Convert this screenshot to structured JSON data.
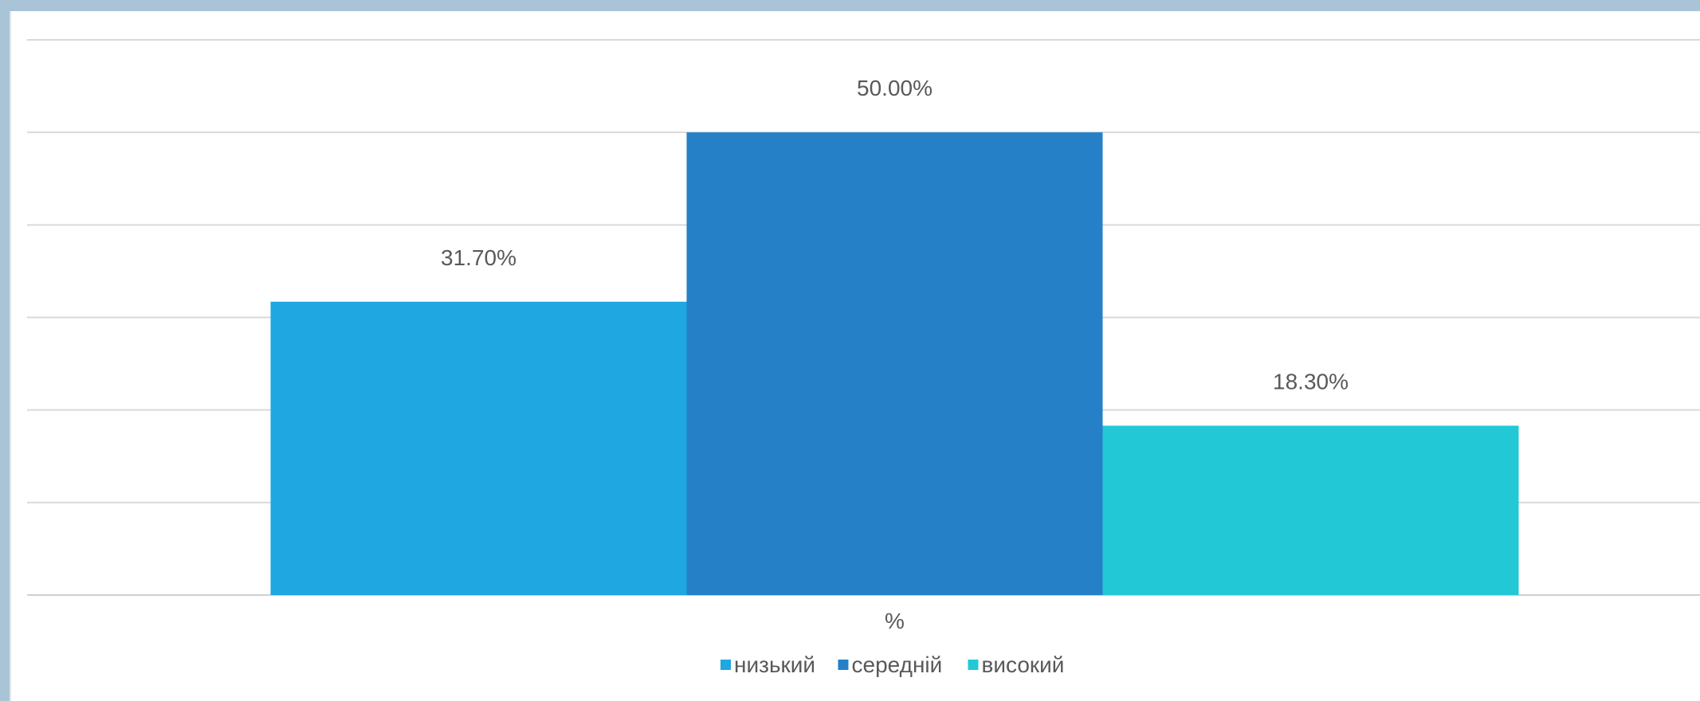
{
  "chart_data": {
    "type": "bar",
    "categories": [
      "%"
    ],
    "series": [
      {
        "name": "низький",
        "values": [
          31.7
        ],
        "label": "31.70%",
        "color": "#1ea7e1"
      },
      {
        "name": "середній",
        "values": [
          50.0
        ],
        "label": "50.00%",
        "color": "#2580c8"
      },
      {
        "name": "високий",
        "values": [
          18.3
        ],
        "label": "18.30%",
        "color": "#22c8d6"
      }
    ],
    "ylim": [
      0,
      60
    ],
    "grid": true,
    "legend_position": "bottom"
  }
}
